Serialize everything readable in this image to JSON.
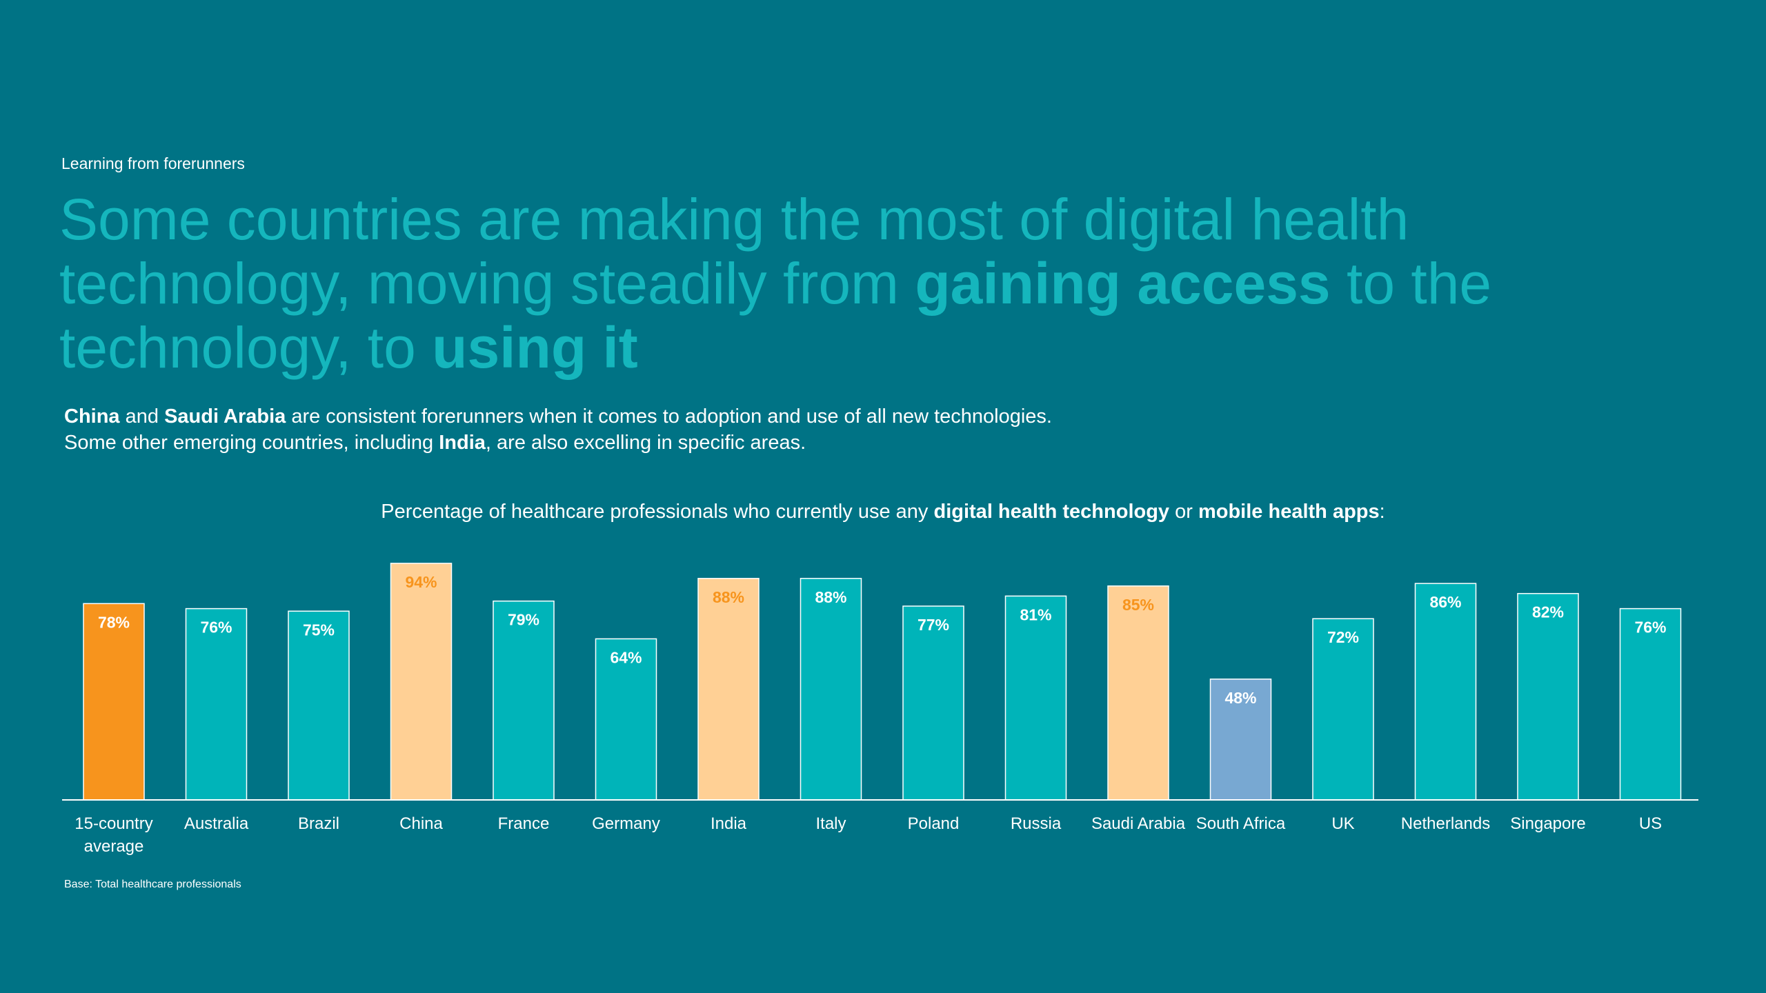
{
  "header": {
    "eyebrow": "Learning from forerunners",
    "headline": {
      "part1": "Some countries are making the most of digital health technology, moving steadily from ",
      "bold1": "gaining access",
      "part2": " to the technology, to ",
      "bold2": "using it"
    }
  },
  "intro": {
    "line1": {
      "bold1": "China",
      "text1": " and ",
      "bold2": "Saudi Arabia",
      "text2": " are consistent forerunners when it comes to adoption and use of all new technologies."
    },
    "line2": {
      "text1": "Some other emerging countries, including ",
      "bold1": "India",
      "text2": ", are also excelling in specific areas."
    }
  },
  "chart_title": {
    "text1": "Percentage of healthcare professionals who currently use any ",
    "bold1": "digital health technology",
    "text2": " or ",
    "bold2": "mobile health apps",
    "text3": ":"
  },
  "chart_data": {
    "type": "bar",
    "categories": [
      "15-country average",
      "Australia",
      "Brazil",
      "China",
      "France",
      "Germany",
      "India",
      "Italy",
      "Poland",
      "Russia",
      "Saudi Arabia",
      "South Africa",
      "UK",
      "Netherlands",
      "Singapore",
      "US"
    ],
    "values": [
      78,
      76,
      75,
      94,
      79,
      64,
      88,
      88,
      77,
      81,
      85,
      48,
      72,
      86,
      82,
      76
    ],
    "labels": [
      "78%",
      "76%",
      "75%",
      "94%",
      "79%",
      "64%",
      "88%",
      "88%",
      "77%",
      "81%",
      "85%",
      "48%",
      "72%",
      "86%",
      "82%",
      "76%"
    ],
    "bar_colors": [
      "#f7941d",
      "#00b4b9",
      "#00b4b9",
      "#ffd095",
      "#00b4b9",
      "#00b4b9",
      "#ffd095",
      "#00b4b9",
      "#00b4b9",
      "#00b4b9",
      "#ffd095",
      "#78a8d2",
      "#00b4b9",
      "#00b4b9",
      "#00b4b9",
      "#00b4b9"
    ],
    "label_colors": [
      "#ffffff",
      "#ffffff",
      "#ffffff",
      "#f7941d",
      "#ffffff",
      "#ffffff",
      "#f7941d",
      "#ffffff",
      "#ffffff",
      "#ffffff",
      "#f7941d",
      "#ffffff",
      "#ffffff",
      "#ffffff",
      "#ffffff",
      "#ffffff"
    ],
    "ylim": [
      0,
      100
    ],
    "grid": false,
    "legend": "none"
  },
  "footnote": "Base: Total healthcare professionals",
  "colors": {
    "background": "#007385",
    "teal_bar": "#00b4b9",
    "average_bar": "#f7941d",
    "highlight_bar": "#ffd095",
    "low_bar": "#78a8d2",
    "headline": "#15b6bd"
  }
}
